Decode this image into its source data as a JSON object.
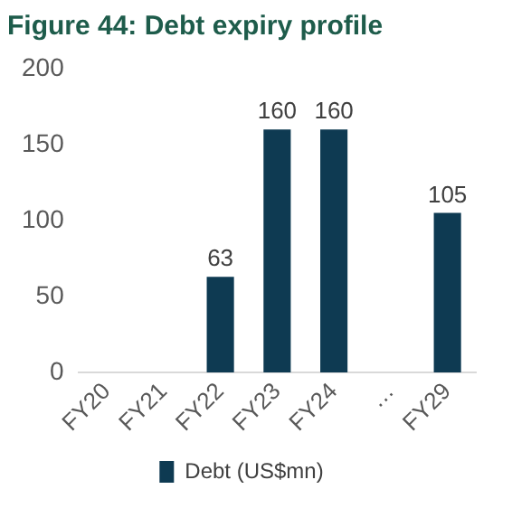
{
  "chart_data": {
    "type": "bar",
    "title": "Figure 44: Debt expiry profile",
    "categories": [
      "FY20",
      "FY21",
      "FY22",
      "FY23",
      "FY24",
      "…",
      "FY29"
    ],
    "series": [
      {
        "name": "Debt (US$mn)",
        "color": "#0e3a52",
        "values": [
          0,
          0,
          63,
          160,
          160,
          null,
          105
        ],
        "value_labels": [
          null,
          null,
          "63",
          "160",
          "160",
          null,
          "105"
        ]
      }
    ],
    "ylim": [
      0,
      200
    ],
    "yticks": [
      0,
      50,
      100,
      150,
      200
    ],
    "grid": false,
    "legend": "bottom"
  }
}
